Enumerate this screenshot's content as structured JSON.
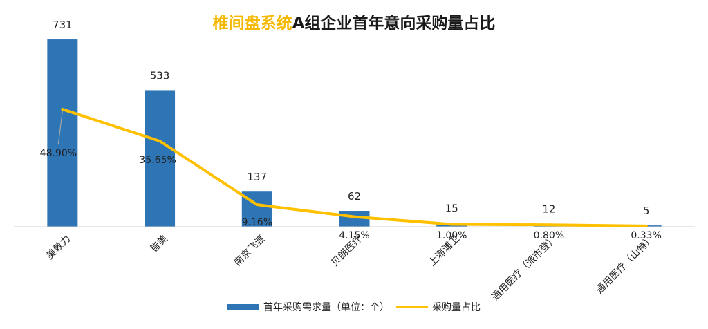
{
  "title": {
    "highlight": "椎间盘系统",
    "rest": "A组企业首年意向采购量占比"
  },
  "colors": {
    "bar": "#2e75b6",
    "line": "#ffc000",
    "title_highlight": "#f5b800"
  },
  "legend": {
    "bar_label": "首年采购需求量（单位：个）",
    "line_label": "采购量占比",
    "placement": "bottom"
  },
  "chart_data": {
    "type": "bar",
    "title": "椎间盘系统A组企业首年意向采购量占比",
    "categories": [
      "美敦力",
      "皆美",
      "南京飞渡",
      "贝朗医疗",
      "上海浦卫",
      "通用医疗（派市登）",
      "通用医疗（山特）"
    ],
    "series": [
      {
        "name": "首年采购需求量（单位：个）",
        "type": "bar",
        "values": [
          731,
          533,
          137,
          62,
          15,
          12,
          5
        ],
        "labels": [
          "731",
          "533",
          "137",
          "62",
          "15",
          "12",
          "5"
        ]
      },
      {
        "name": "采购量占比",
        "type": "line",
        "values": [
          48.9,
          35.65,
          9.16,
          4.15,
          1.0,
          0.8,
          0.33
        ],
        "labels": [
          "48.90%",
          "35.65%",
          "9.16%",
          "4.15%",
          "1.00%",
          "0.80%",
          "0.33%"
        ]
      }
    ],
    "ylim": [
      0,
      750
    ],
    "y2lim": [
      0,
      80
    ],
    "grid": false,
    "legend_position": "bottom"
  }
}
